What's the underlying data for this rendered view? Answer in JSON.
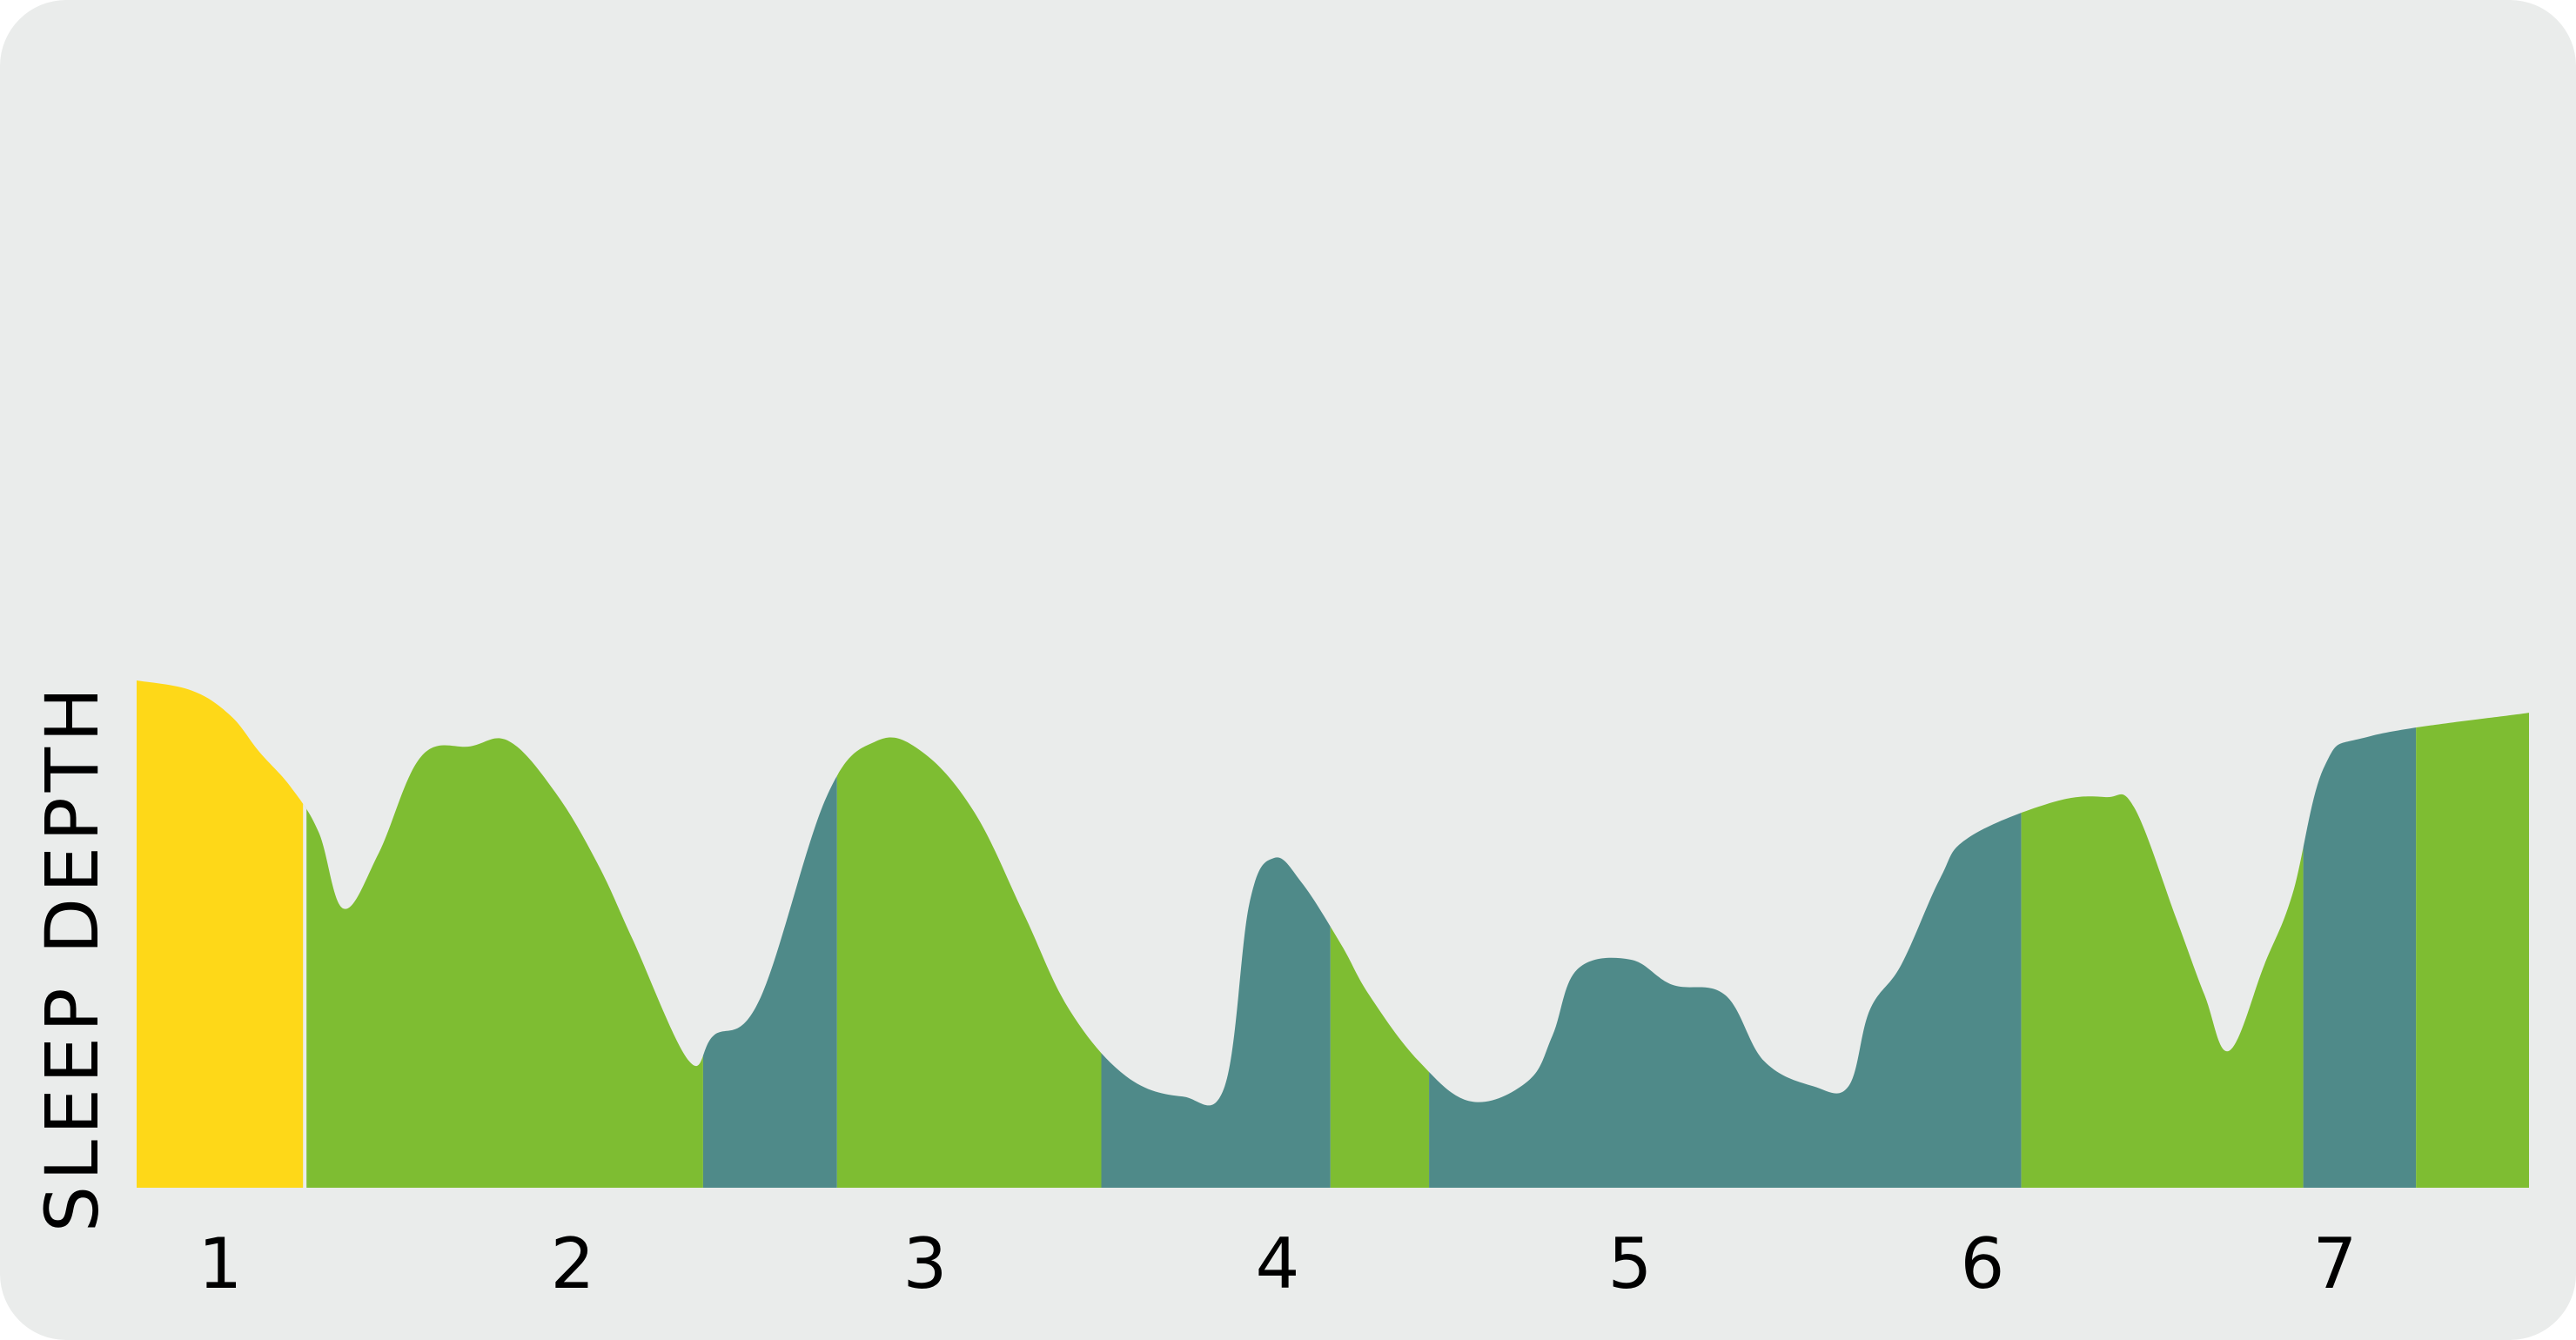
{
  "chart_data": {
    "type": "area",
    "title": "",
    "xlabel": "",
    "ylabel": "SLEEP DEPTH",
    "x_ticks": [
      "1",
      "2",
      "3",
      "4",
      "5",
      "6",
      "7"
    ],
    "x_range": [
      0.8,
      7.5
    ],
    "y_range": [
      0,
      1
    ],
    "grid": false,
    "legend": "none",
    "colors": {
      "background": "#EAECEB",
      "yellow": "#FED818",
      "green": "#7EBD32",
      "teal": "#4F8A89",
      "text": "#000000"
    },
    "curve": [
      [
        0.8,
        1.0
      ],
      [
        0.92,
        0.98
      ],
      [
        1.03,
        0.93
      ],
      [
        1.11,
        0.86
      ],
      [
        1.2,
        0.79
      ],
      [
        1.28,
        0.7
      ],
      [
        1.35,
        0.55
      ],
      [
        1.45,
        0.66
      ],
      [
        1.57,
        0.85
      ],
      [
        1.71,
        0.87
      ],
      [
        1.82,
        0.88
      ],
      [
        1.95,
        0.78
      ],
      [
        2.07,
        0.64
      ],
      [
        2.17,
        0.49
      ],
      [
        2.33,
        0.25
      ],
      [
        2.4,
        0.3
      ],
      [
        2.53,
        0.37
      ],
      [
        2.72,
        0.77
      ],
      [
        2.86,
        0.88
      ],
      [
        2.99,
        0.86
      ],
      [
        3.14,
        0.74
      ],
      [
        3.28,
        0.54
      ],
      [
        3.41,
        0.35
      ],
      [
        3.57,
        0.22
      ],
      [
        3.73,
        0.18
      ],
      [
        3.85,
        0.2
      ],
      [
        3.92,
        0.56
      ],
      [
        3.99,
        0.65
      ],
      [
        4.07,
        0.6
      ],
      [
        4.18,
        0.48
      ],
      [
        4.26,
        0.38
      ],
      [
        4.4,
        0.25
      ],
      [
        4.55,
        0.17
      ],
      [
        4.71,
        0.21
      ],
      [
        4.78,
        0.3
      ],
      [
        4.85,
        0.43
      ],
      [
        5.0,
        0.45
      ],
      [
        5.12,
        0.4
      ],
      [
        5.27,
        0.38
      ],
      [
        5.38,
        0.25
      ],
      [
        5.52,
        0.2
      ],
      [
        5.62,
        0.2
      ],
      [
        5.68,
        0.35
      ],
      [
        5.77,
        0.44
      ],
      [
        5.88,
        0.61
      ],
      [
        5.96,
        0.69
      ],
      [
        6.2,
        0.76
      ],
      [
        6.35,
        0.77
      ],
      [
        6.43,
        0.75
      ],
      [
        6.55,
        0.53
      ],
      [
        6.63,
        0.38
      ],
      [
        6.7,
        0.27
      ],
      [
        6.8,
        0.44
      ],
      [
        6.88,
        0.58
      ],
      [
        6.97,
        0.83
      ],
      [
        7.1,
        0.89
      ]
    ],
    "bands": [
      {
        "x0": 0.8,
        "x1": 1.24,
        "stage": "yellow"
      },
      {
        "x0": 1.24,
        "x1": 2.37,
        "stage": "green"
      },
      {
        "x0": 2.37,
        "x1": 2.75,
        "stage": "teal"
      },
      {
        "x0": 2.75,
        "x1": 3.5,
        "stage": "green"
      },
      {
        "x0": 3.5,
        "x1": 4.15,
        "stage": "teal"
      },
      {
        "x0": 4.15,
        "x1": 4.43,
        "stage": "green"
      },
      {
        "x0": 4.43,
        "x1": 6.11,
        "stage": "teal"
      },
      {
        "x0": 6.11,
        "x1": 6.91,
        "stage": "green"
      },
      {
        "x0": 6.91,
        "x1": 7.23,
        "stage": "teal"
      },
      {
        "x0": 7.23,
        "x1": 7.55,
        "stage": "green"
      }
    ]
  }
}
